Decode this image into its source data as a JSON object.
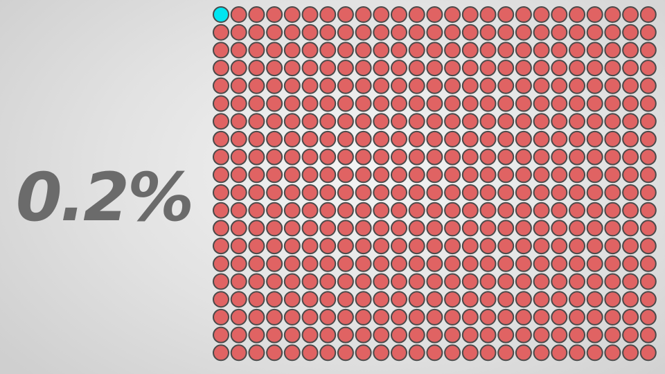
{
  "chart_data": {
    "type": "waffle",
    "label": "0.2%",
    "total": 500,
    "highlighted": 1,
    "rows": 20,
    "columns": 25,
    "colors": {
      "highlighted": "#00e5f0",
      "default": "#e06363",
      "stroke": "#4a4a4a"
    }
  }
}
